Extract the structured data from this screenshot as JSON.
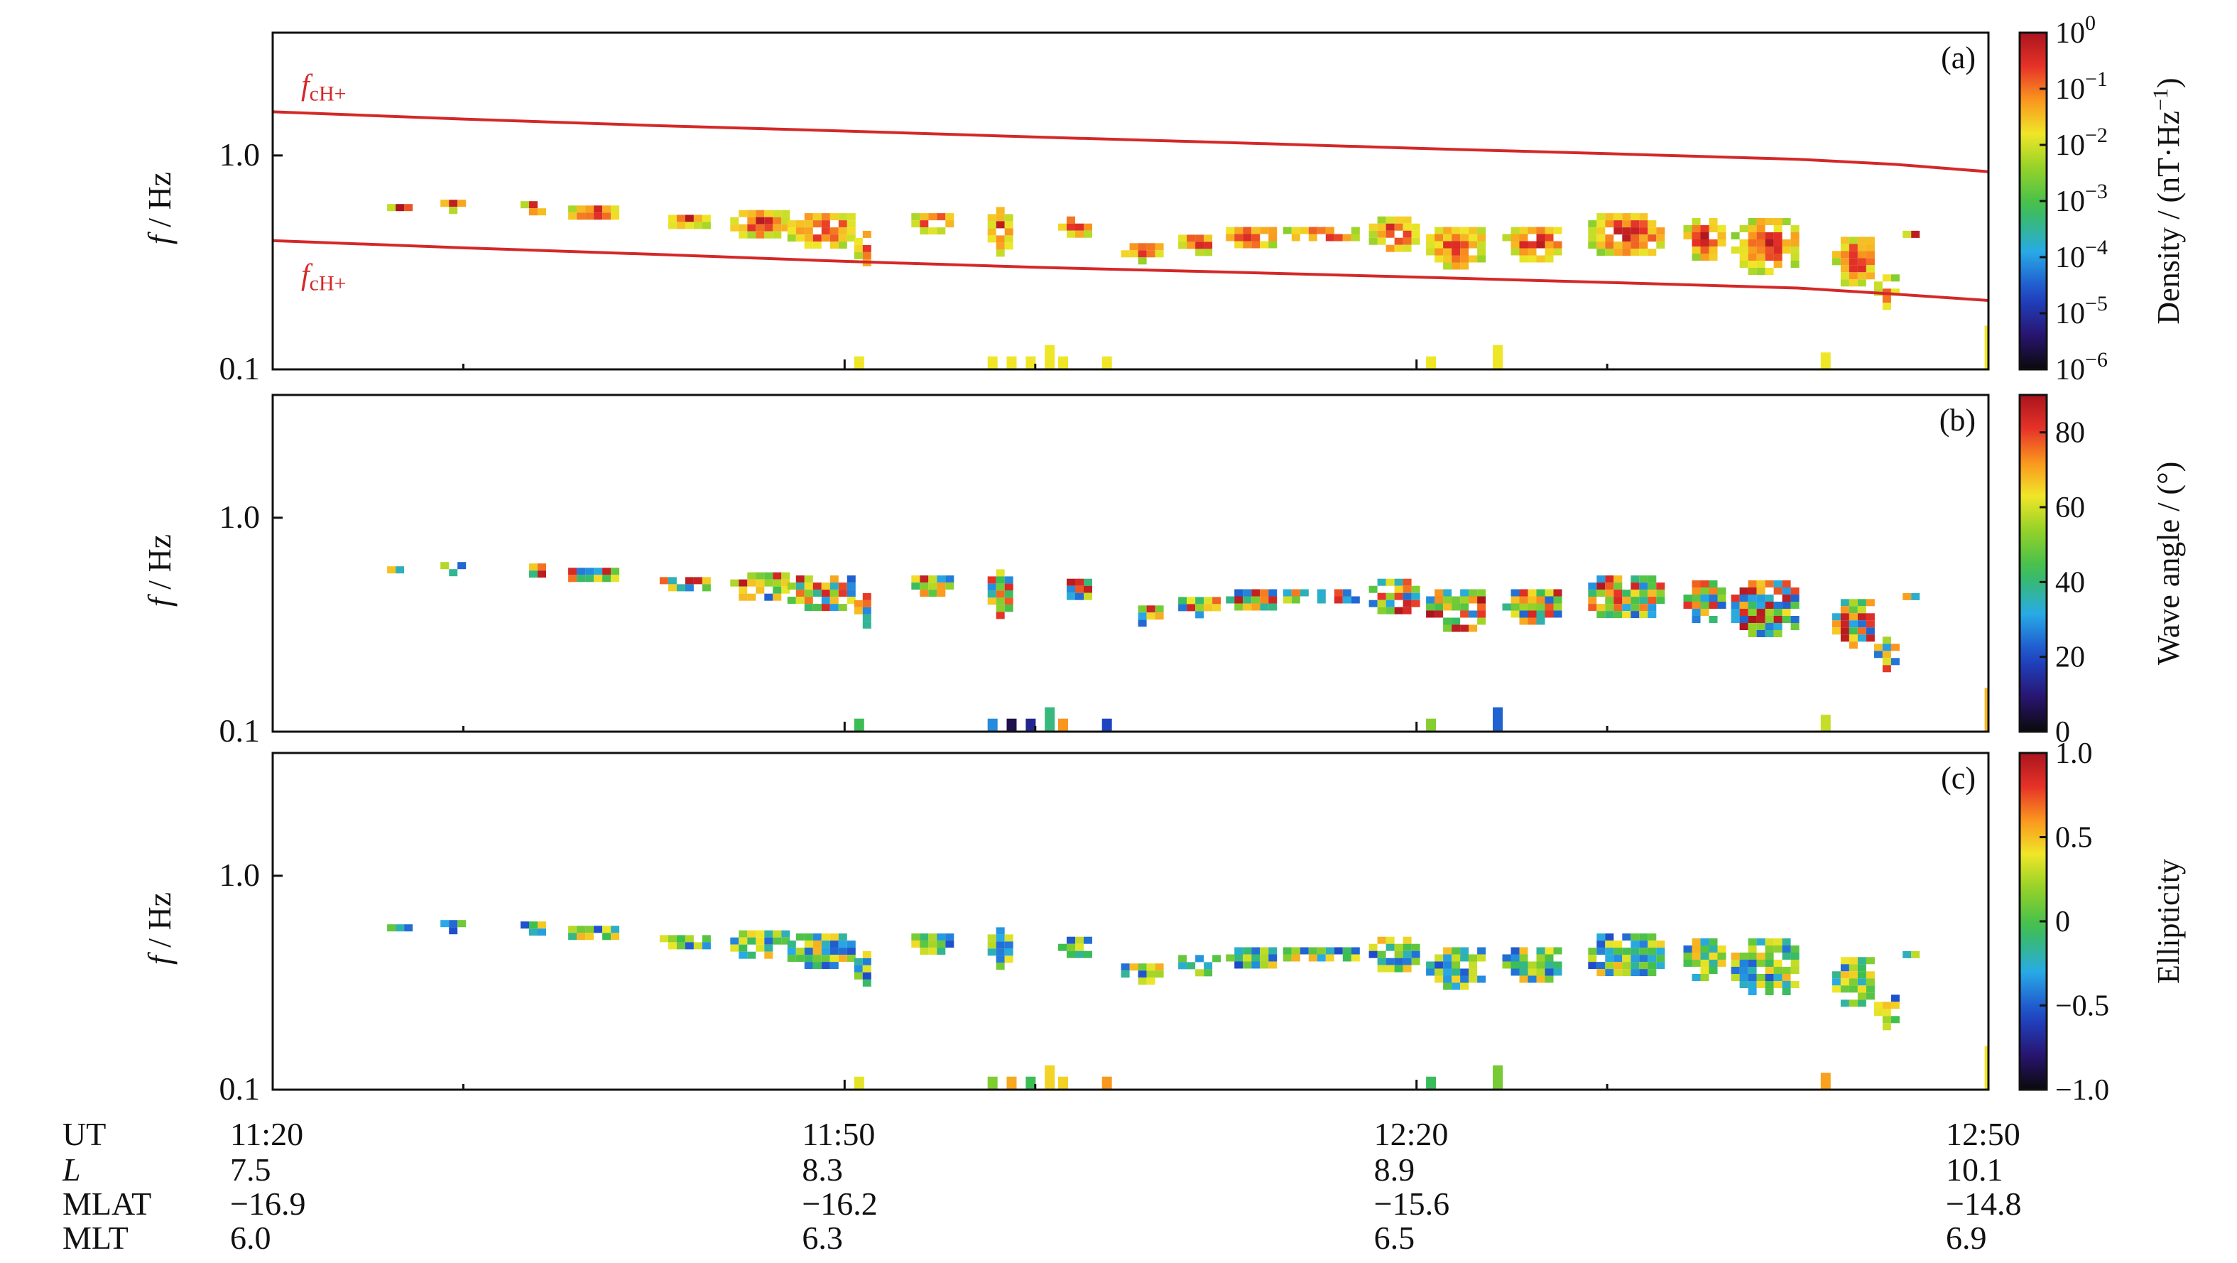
{
  "figure": {
    "background": "#ffffff",
    "fc_color": "#d42828"
  },
  "chart_data": [
    {
      "id": "a",
      "type": "heatmap",
      "panel_label": "(a)",
      "ylabel_italic": "f",
      "ylabel_rest": " / Hz",
      "yscale": "log",
      "ylim": [
        0.1,
        3.75
      ],
      "yticks": [
        {
          "value": 0.1,
          "label": "0.1"
        },
        {
          "value": 1.0,
          "label": "1.0"
        }
      ],
      "x_minor_ticks_min": [
        10,
        40,
        70
      ],
      "colorbar": {
        "title": "Density / (nT·Hz",
        "title_sup": "−1",
        "title_close": ")",
        "scale": "log",
        "range": [
          -6,
          0
        ],
        "ticks": [
          {
            "base": "10",
            "exp": "0"
          },
          {
            "base": "10",
            "exp": "−1"
          },
          {
            "base": "10",
            "exp": "−2"
          },
          {
            "base": "10",
            "exp": "−3"
          },
          {
            "base": "10",
            "exp": "−4"
          },
          {
            "base": "10",
            "exp": "−5"
          },
          {
            "base": "10",
            "exp": "−6"
          }
        ]
      },
      "lines": [
        {
          "label_main": "f",
          "label_sub": "cH+",
          "position": "upper",
          "x_min": [
            0,
            10,
            20,
            30,
            40,
            50,
            60,
            70,
            80,
            85,
            90
          ],
          "y_hz": [
            1.6,
            1.48,
            1.38,
            1.3,
            1.22,
            1.15,
            1.08,
            1.02,
            0.96,
            0.91,
            0.84
          ]
        },
        {
          "label_main": "f",
          "label_sub": "cH+",
          "position": "lower",
          "x_min": [
            0,
            10,
            20,
            30,
            40,
            50,
            60,
            70,
            80,
            85,
            90
          ],
          "y_hz": [
            0.4,
            0.37,
            0.345,
            0.32,
            0.3,
            0.285,
            0.27,
            0.255,
            0.24,
            0.225,
            0.21
          ]
        }
      ]
    },
    {
      "id": "b",
      "type": "heatmap",
      "panel_label": "(b)",
      "ylabel_italic": "f",
      "ylabel_rest": " / Hz",
      "yscale": "log",
      "ylim": [
        0.1,
        3.75
      ],
      "yticks": [
        {
          "value": 0.1,
          "label": "0.1"
        },
        {
          "value": 1.0,
          "label": "1.0"
        }
      ],
      "x_minor_ticks_min": [
        10,
        40,
        70
      ],
      "colorbar": {
        "title": "Wave angle / (°)",
        "scale": "linear",
        "range": [
          0,
          90
        ],
        "ticks": [
          {
            "value": 80,
            "label": "80"
          },
          {
            "value": 60,
            "label": "60"
          },
          {
            "value": 40,
            "label": "40"
          },
          {
            "value": 20,
            "label": "20"
          },
          {
            "value": 0,
            "label": "0"
          }
        ]
      }
    },
    {
      "id": "c",
      "type": "heatmap",
      "panel_label": "(c)",
      "ylabel_italic": "f",
      "ylabel_rest": " / Hz",
      "yscale": "log",
      "ylim": [
        0.1,
        3.75
      ],
      "yticks": [
        {
          "value": 0.1,
          "label": "0.1"
        },
        {
          "value": 1.0,
          "label": "1.0"
        }
      ],
      "x_minor_ticks_min": [
        10,
        40,
        70
      ],
      "colorbar": {
        "title": "Ellipticity",
        "scale": "linear",
        "range": [
          -1,
          1
        ],
        "ticks": [
          {
            "value": 1,
            "label": "1.0"
          },
          {
            "value": 0.5,
            "label": "0.5"
          },
          {
            "value": 0,
            "label": "0"
          },
          {
            "value": -0.5,
            "label": "−0.5"
          },
          {
            "value": -1,
            "label": "−1.0"
          }
        ]
      }
    }
  ],
  "x_axis": {
    "range_min": [
      0,
      90
    ],
    "major_min": [
      0,
      30,
      60,
      90
    ],
    "rows": [
      {
        "name": "UT",
        "italic": false,
        "values": [
          "11:20",
          "11:50",
          "12:20",
          "12:50"
        ]
      },
      {
        "name": "L",
        "italic": true,
        "values": [
          "7.5",
          "8.3",
          "8.9",
          "10.1"
        ]
      },
      {
        "name": "MLAT",
        "italic": false,
        "values": [
          "−16.9",
          "−16.2",
          "−15.6",
          "−14.8"
        ]
      },
      {
        "name": "MLT",
        "italic": false,
        "values": [
          "6.0",
          "6.3",
          "6.5",
          "6.9"
        ]
      }
    ]
  },
  "wave_packets": [
    {
      "t": [
        6.0,
        7.2
      ],
      "f": [
        0.55,
        0.64
      ]
    },
    {
      "t": [
        8.8,
        10.0
      ],
      "f": [
        0.57,
        0.67
      ]
    },
    {
      "t": [
        13.0,
        14.2
      ],
      "f": [
        0.55,
        0.66
      ]
    },
    {
      "t": [
        15.5,
        17.8
      ],
      "f": [
        0.5,
        0.63
      ]
    },
    {
      "t": [
        20.3,
        22.8
      ],
      "f": [
        0.47,
        0.57
      ]
    },
    {
      "t": [
        24.0,
        27.0
      ],
      "f": [
        0.42,
        0.6
      ]
    },
    {
      "t": [
        27.0,
        30.5
      ],
      "f": [
        0.38,
        0.58
      ]
    },
    {
      "t": [
        30.5,
        31.2
      ],
      "f": [
        0.3,
        0.48
      ]
    },
    {
      "t": [
        33.5,
        35.3
      ],
      "f": [
        0.45,
        0.58
      ]
    },
    {
      "t": [
        37.5,
        38.5
      ],
      "f": [
        0.36,
        0.62
      ]
    },
    {
      "t": [
        41.2,
        42.8
      ],
      "f": [
        0.42,
        0.56
      ]
    },
    {
      "t": [
        44.5,
        46.5
      ],
      "f": [
        0.33,
        0.42
      ]
    },
    {
      "t": [
        47.5,
        49.5
      ],
      "f": [
        0.36,
        0.46
      ]
    },
    {
      "t": [
        50.0,
        52.5
      ],
      "f": [
        0.38,
        0.5
      ]
    },
    {
      "t": [
        53.0,
        56.8
      ],
      "f": [
        0.4,
        0.5
      ]
    },
    {
      "t": [
        57.5,
        59.8
      ],
      "f": [
        0.36,
        0.56
      ]
    },
    {
      "t": [
        60.5,
        63.5
      ],
      "f": [
        0.3,
        0.5
      ]
    },
    {
      "t": [
        64.5,
        67.5
      ],
      "f": [
        0.33,
        0.5
      ]
    },
    {
      "t": [
        69.0,
        72.8
      ],
      "f": [
        0.34,
        0.58
      ]
    },
    {
      "t": [
        74.0,
        75.8
      ],
      "f": [
        0.33,
        0.55
      ]
    },
    {
      "t": [
        76.5,
        80.0
      ],
      "f": [
        0.28,
        0.55
      ]
    },
    {
      "t": [
        81.8,
        84.0
      ],
      "f": [
        0.25,
        0.45
      ]
    },
    {
      "t": [
        84.0,
        85.0
      ],
      "f": [
        0.2,
        0.3
      ]
    },
    {
      "t": [
        85.5,
        86.3
      ],
      "f": [
        0.42,
        0.48
      ]
    }
  ],
  "low_freq_bursts": [
    {
      "t": 30.5,
      "f": 0.115
    },
    {
      "t": 37.5,
      "f": 0.115
    },
    {
      "t": 38.5,
      "f": 0.115
    },
    {
      "t": 39.5,
      "f": 0.115
    },
    {
      "t": 40.5,
      "f": 0.13
    },
    {
      "t": 41.2,
      "f": 0.115
    },
    {
      "t": 43.5,
      "f": 0.115
    },
    {
      "t": 60.5,
      "f": 0.115
    },
    {
      "t": 64.0,
      "f": 0.13
    },
    {
      "t": 81.2,
      "f": 0.12
    },
    {
      "t": 89.8,
      "f": 0.16
    }
  ]
}
